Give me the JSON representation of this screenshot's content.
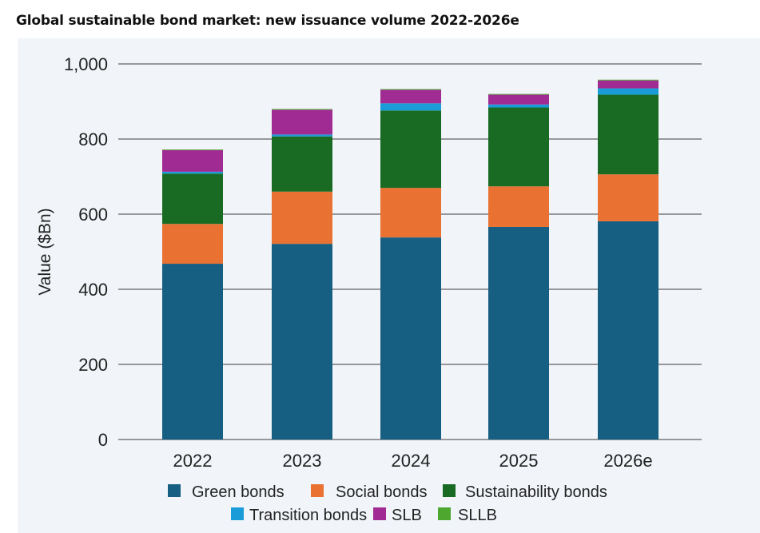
{
  "chart_data": {
    "type": "bar",
    "stacked": true,
    "title": "Global sustainable bond market: new issuance volume 2022-2026e",
    "xlabel": "",
    "ylabel": "Value ($Bn)",
    "ylim": [
      0,
      1000
    ],
    "yticks": [
      "0",
      "200",
      "400",
      "600",
      "800",
      "1,000"
    ],
    "grid": "horizontal",
    "legend_position": "bottom",
    "categories": [
      "2022",
      "2023",
      "2024",
      "2025",
      "2026e"
    ],
    "series": [
      {
        "name": "Green bonds",
        "color": "#175f82",
        "values": [
          468,
          521,
          538,
          566,
          581
        ]
      },
      {
        "name": "Social bonds",
        "color": "#e97132",
        "values": [
          106,
          139,
          132,
          108,
          125
        ]
      },
      {
        "name": "Sustainability bonds",
        "color": "#196b24",
        "values": [
          134,
          147,
          206,
          210,
          212
        ]
      },
      {
        "name": "Transition bonds",
        "color": "#1a9cd8",
        "values": [
          5,
          5,
          19,
          8,
          17
        ]
      },
      {
        "name": "SLB",
        "color": "#a02b93",
        "values": [
          58,
          66,
          36,
          26,
          21
        ]
      },
      {
        "name": "SLLB",
        "color": "#4ea72e",
        "values": [
          1,
          2,
          2,
          2,
          2
        ]
      }
    ]
  }
}
